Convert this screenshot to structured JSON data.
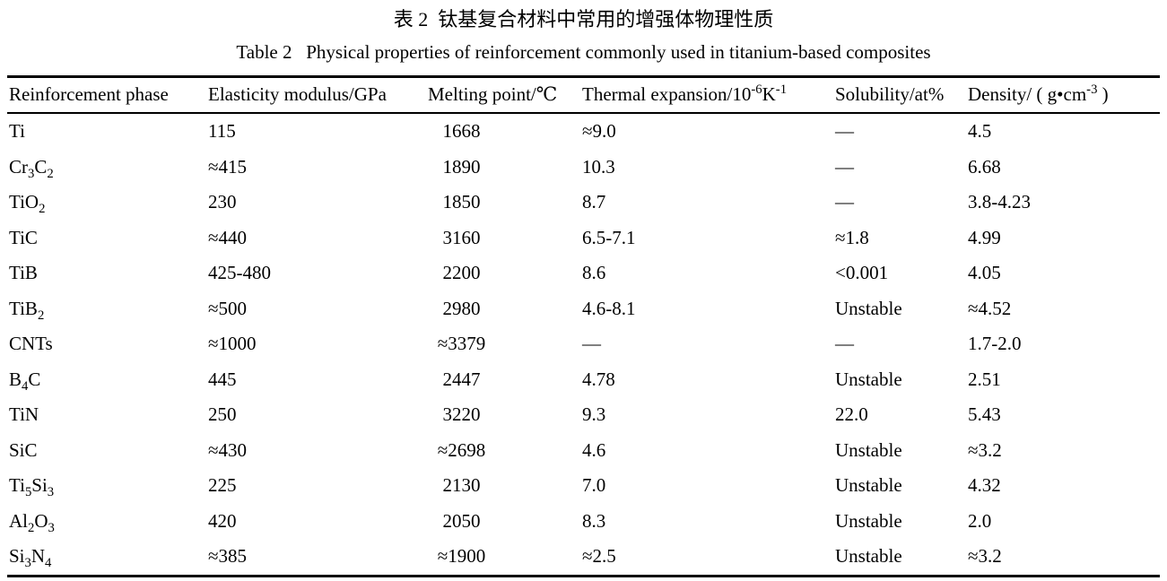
{
  "caption": {
    "zh": "表 2  钛基复合材料中常用的增强体物理性质",
    "en": "Table 2   Physical properties of reinforcement commonly used in titanium-based composites"
  },
  "colors": {
    "text": "#000000",
    "background": "#ffffff",
    "rule": "#000000"
  },
  "table": {
    "columns": [
      "Reinforcement phase",
      "Elasticity modulus/GPa",
      "Melting point/℃",
      "Thermal expansion/10<sup>-6</sup>K<sup>-1</sup>",
      "Solubility/at%",
      "Density/ ( g•cm<sup>-3</sup> )"
    ],
    "rows": [
      [
        "Ti",
        "115",
        "1668",
        "≈9.0",
        "—",
        "4.5"
      ],
      [
        "Cr<sub>3</sub>C<sub>2</sub>",
        "≈415",
        "1890",
        "10.3",
        "—",
        "6.68"
      ],
      [
        "TiO<sub>2</sub>",
        "230",
        "1850",
        "8.7",
        "—",
        "3.8-4.23"
      ],
      [
        "TiC",
        "≈440",
        "3160",
        "6.5-7.1",
        "≈1.8",
        "4.99"
      ],
      [
        "TiB",
        "425-480",
        "2200",
        "8.6",
        "<0.001",
        "4.05"
      ],
      [
        "TiB<sub>2</sub>",
        "≈500",
        "2980",
        "4.6-8.1",
        "Unstable",
        "≈4.52"
      ],
      [
        "CNTs",
        "≈1000",
        "≈3379",
        "—",
        "—",
        "1.7-2.0"
      ],
      [
        "B<sub>4</sub>C",
        "445",
        "2447",
        "4.78",
        "Unstable",
        "2.51"
      ],
      [
        "TiN",
        "250",
        "3220",
        "9.3",
        "22.0",
        "5.43"
      ],
      [
        "SiC",
        "≈430",
        "≈2698",
        "4.6",
        "Unstable",
        "≈3.2"
      ],
      [
        "Ti<sub>5</sub>Si<sub>3</sub>",
        "225",
        "2130",
        "7.0",
        "Unstable",
        "4.32"
      ],
      [
        "Al<sub>2</sub>O<sub>3</sub>",
        "420",
        "2050",
        "8.3",
        "Unstable",
        "2.0"
      ],
      [
        "Si<sub>3</sub>N<sub>4</sub>",
        "≈385",
        "≈1900",
        "≈2.5",
        "Unstable",
        "≈3.2"
      ]
    ]
  }
}
